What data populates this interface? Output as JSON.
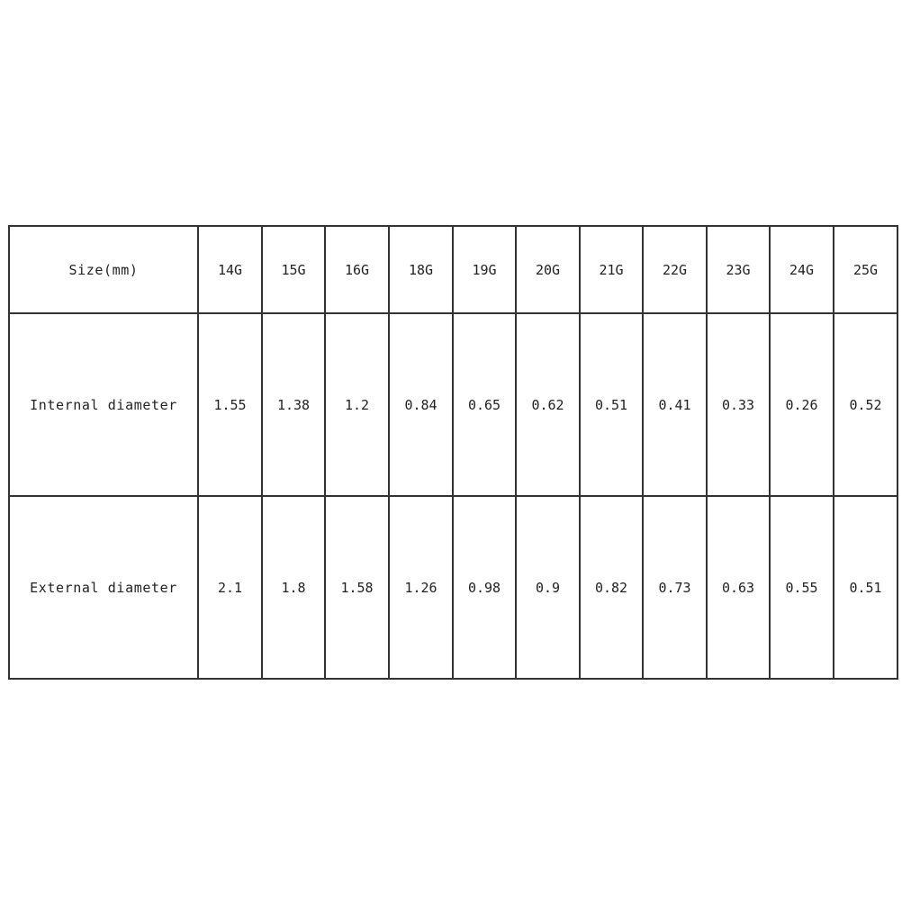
{
  "table": {
    "header_label": "Size(mm)",
    "columns": [
      "14G",
      "15G",
      "16G",
      "18G",
      "19G",
      "20G",
      "21G",
      "22G",
      "23G",
      "24G",
      "25G"
    ],
    "rows": [
      {
        "label": "Internal diameter",
        "values": [
          "1.55",
          "1.38",
          "1.2",
          "0.84",
          "0.65",
          "0.62",
          "0.51",
          "0.41",
          "0.33",
          "0.26",
          "0.52"
        ]
      },
      {
        "label": "External diameter",
        "values": [
          "2.1",
          "1.8",
          "1.58",
          "1.26",
          "0.98",
          "0.9",
          "0.82",
          "0.73",
          "0.63",
          "0.55",
          "0.51"
        ]
      }
    ]
  }
}
